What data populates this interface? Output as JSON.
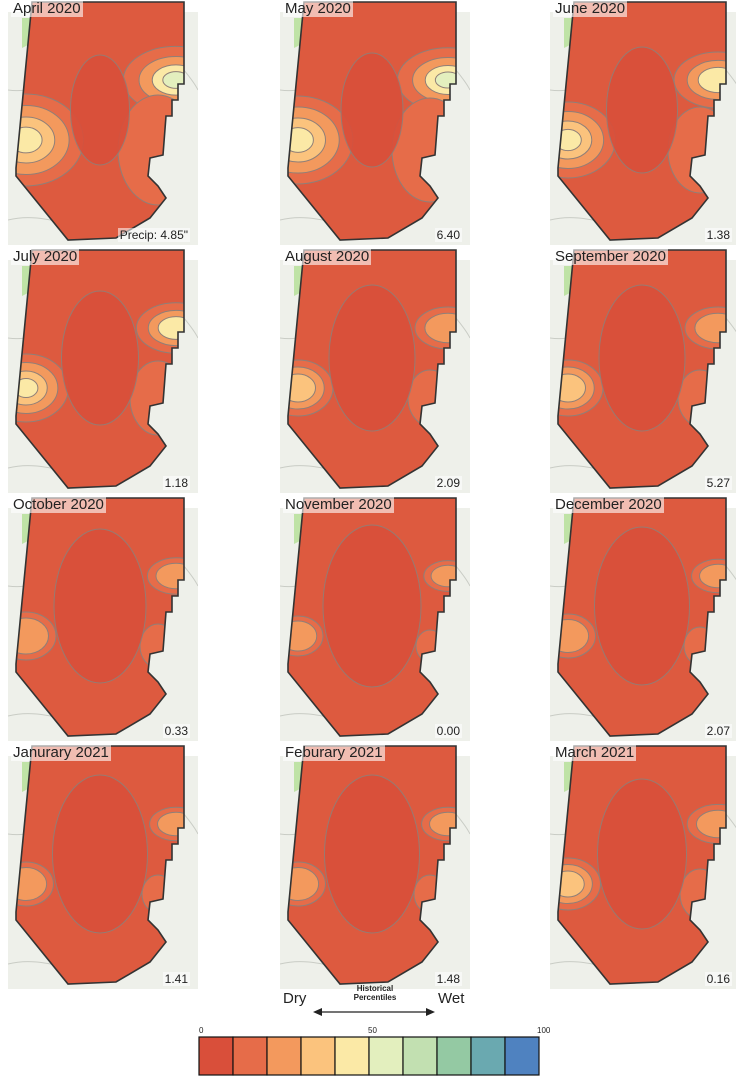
{
  "panels": [
    {
      "title": "April 2020",
      "precip": "Precip: 4.85\"",
      "wet_level": 0.75
    },
    {
      "title": "May 2020",
      "precip": "6.40",
      "wet_level": 0.7
    },
    {
      "title": "June 2020",
      "precip": "1.38",
      "wet_level": 0.55
    },
    {
      "title": "July 2020",
      "precip": "1.18",
      "wet_level": 0.45
    },
    {
      "title": "August 2020",
      "precip": "2.09",
      "wet_level": 0.3
    },
    {
      "title": "September 2020",
      "precip": "5.27",
      "wet_level": 0.3
    },
    {
      "title": "October 2020",
      "precip": "0.33",
      "wet_level": 0.2
    },
    {
      "title": "November 2020",
      "precip": "0.00",
      "wet_level": 0.1
    },
    {
      "title": "December 2020",
      "precip": "2.07",
      "wet_level": 0.15
    },
    {
      "title": "Janurary 2021",
      "precip": "1.41",
      "wet_level": 0.15
    },
    {
      "title": "Feburary 2021",
      "precip": "1.48",
      "wet_level": 0.15
    },
    {
      "title": "March 2021",
      "precip": "0.16",
      "wet_level": 0.25
    }
  ],
  "legend": {
    "dry_label": "Dry",
    "wet_label": "Wet",
    "title_line1": "Historical",
    "title_line2": "Percentiles",
    "ticks": [
      "0",
      "50",
      "100"
    ],
    "colors": [
      "#d94f3a",
      "#e66c49",
      "#f3995d",
      "#fbc37d",
      "#fbe9a6",
      "#e3efbe",
      "#c2e0b1",
      "#94c9a3",
      "#6aa9b0",
      "#4f82c0"
    ]
  },
  "map_colors": {
    "base": "#dd5a3f",
    "outline": "#333333",
    "contour": "#8f7f78",
    "background": "#eef0ea",
    "park": "#bfe3a6"
  }
}
